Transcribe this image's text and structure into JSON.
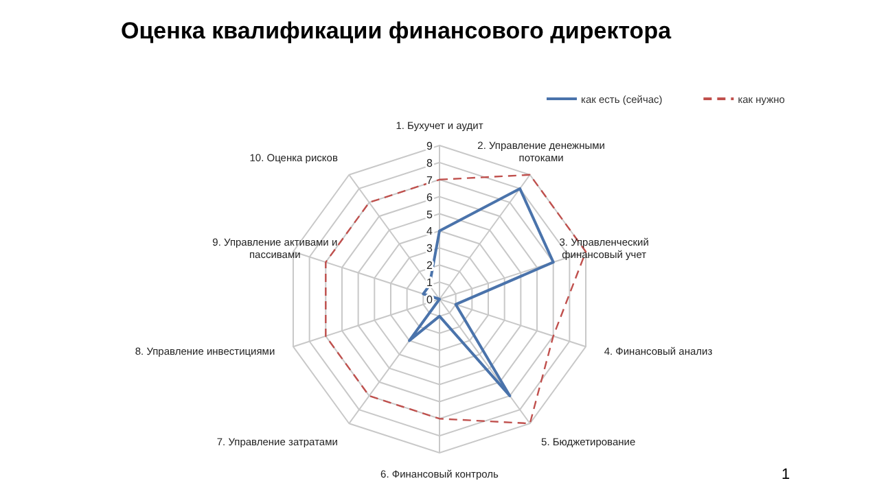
{
  "chart_data": {
    "type": "radar",
    "title": "Оценка квалификации финансового директора",
    "categories": [
      "1. Бухучет и аудит",
      "2. Управление денежными потоками",
      "3. Управленческий финансовый учет",
      "4. Финансовый анализ",
      "5. Бюджетирование",
      "6. Финансовый контроль",
      "7. Управление затратами",
      "8. Управление инвестициями",
      "9. Управление активами и пассивами",
      "10. Оценка рисков"
    ],
    "series": [
      {
        "name": "как есть (сейчас)",
        "color": "#4a73ab",
        "line_style": "solid",
        "values": [
          4,
          8,
          7,
          1,
          7,
          1,
          3,
          0,
          1,
          1
        ]
      },
      {
        "name": "как нужно",
        "color": "#c0504d",
        "line_style": "dashed",
        "values": [
          7,
          9,
          9,
          7,
          9,
          7,
          7,
          7,
          7,
          7
        ]
      }
    ],
    "ylim": [
      0,
      9
    ],
    "yticks": [
      0,
      1,
      2,
      3,
      4,
      5,
      6,
      7,
      8,
      9
    ],
    "grid": true,
    "legend": "top right",
    "marker": "none",
    "annotations": [
      "1"
    ]
  }
}
